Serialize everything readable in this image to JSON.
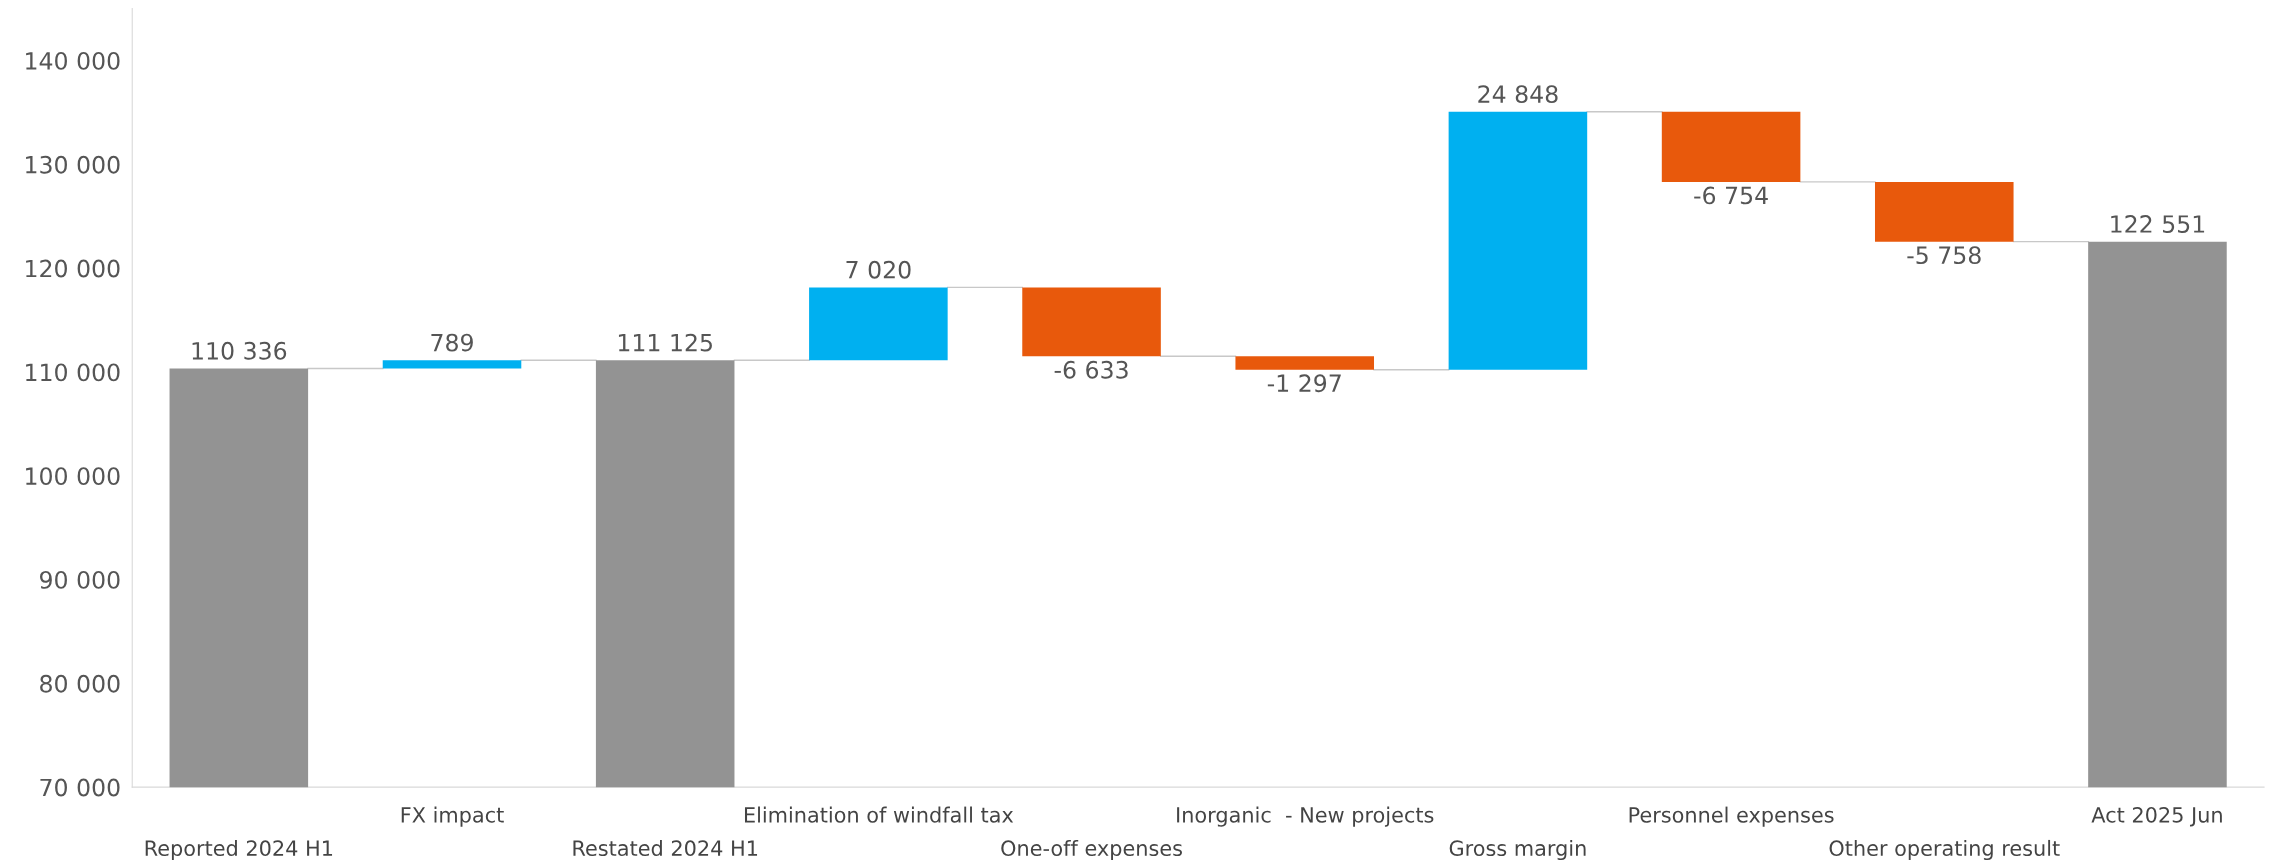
{
  "chart_data": {
    "type": "bar",
    "categories": [
      "Reported 2024 H1",
      "FX impact",
      "Restated 2024 H1",
      "Elimination of windfall tax",
      "One-off expenses",
      "Inorganic  - New projects",
      "Gross margin",
      "Personnel expenses",
      "Other operating result",
      "Act 2025 Jun"
    ],
    "values": [
      110336,
      789,
      111125,
      7020,
      -6633,
      -1297,
      24848,
      -6754,
      -5758,
      122551
    ],
    "base": [
      0,
      110336,
      0,
      111125,
      118145,
      111512,
      110215,
      135063,
      128309,
      0
    ],
    "colors": [
      "#939393",
      "#00b0f0",
      "#939393",
      "#00b0f0",
      "#e8590c",
      "#e8590c",
      "#00b0f0",
      "#e8590c",
      "#e8590c",
      "#939393"
    ],
    "value_labels": [
      "110 336",
      "789",
      "111 125",
      "7 020",
      "-6 633",
      "-1 297",
      "24 848",
      "-6 754",
      "-5 758",
      "122 551"
    ],
    "ylim": [
      70000,
      145000
    ],
    "yticks": [
      {
        "value": 70000,
        "label": "70 000"
      },
      {
        "value": 80000,
        "label": "80 000"
      },
      {
        "value": 90000,
        "label": "90 000"
      },
      {
        "value": 100000,
        "label": "100 000"
      },
      {
        "value": 110000,
        "label": "110 000"
      },
      {
        "value": 120000,
        "label": "120 000"
      },
      {
        "value": 130000,
        "label": "130 000"
      },
      {
        "value": 140000,
        "label": "140 000"
      }
    ],
    "grid": false,
    "legend": false
  }
}
